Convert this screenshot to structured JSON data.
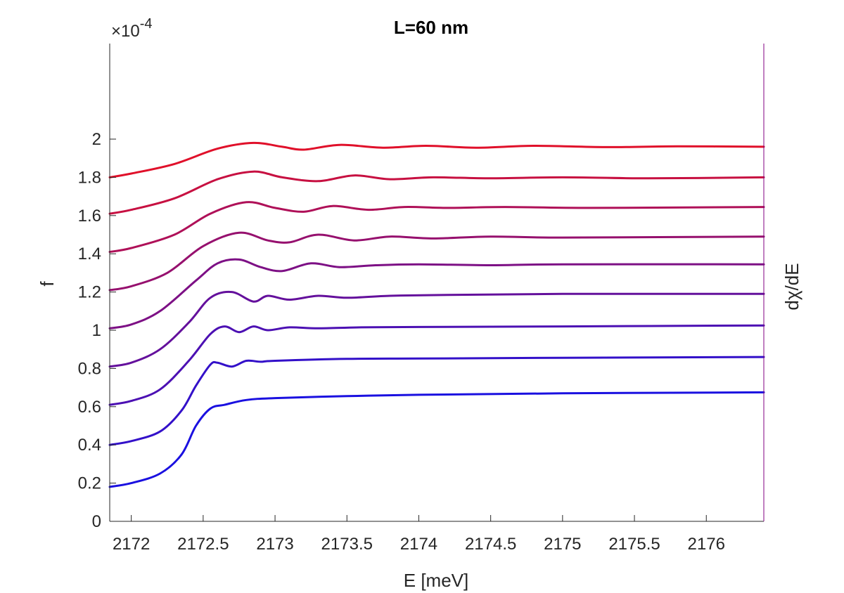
{
  "chart_data": {
    "type": "line",
    "title": "L=60 nm",
    "xlabel": "E [meV]",
    "ylabel": "f",
    "y2label": "dχ/dE",
    "y_exponent_label": "×10",
    "y_exponent_power": "-4",
    "xlim": [
      2171.85,
      2176.4
    ],
    "ylim": [
      0,
      2.5
    ],
    "grid": false,
    "x_ticks": [
      2172,
      2172.5,
      2173,
      2173.5,
      2174,
      2174.5,
      2175,
      2175.5,
      2176
    ],
    "x_tick_labels": [
      "2172",
      "2172.5",
      "2173",
      "2173.5",
      "2174",
      "2174.5",
      "2175",
      "2175.5",
      "2176"
    ],
    "y_ticks": [
      0,
      0.2,
      0.4,
      0.6,
      0.8,
      1,
      1.2,
      1.4,
      1.6,
      1.8,
      2
    ],
    "y_tick_labels": [
      "0",
      "0.2",
      "0.4",
      "0.6",
      "0.8",
      "1",
      "1.2",
      "1.4",
      "1.6",
      "1.8",
      "2"
    ],
    "colors": {
      "low": "#1a10e0",
      "high": "#e0102a",
      "right_axis": "#800080",
      "axis": "#262626"
    },
    "series": [
      {
        "values_desc": "curve 1",
        "x": [
          2171.85,
          2172.0,
          2172.2,
          2172.35,
          2172.45,
          2172.55,
          2172.65,
          2172.8,
          2173.0,
          2173.5,
          2174.0,
          2175.0,
          2176.4
        ],
        "y": [
          0.18,
          0.2,
          0.25,
          0.35,
          0.5,
          0.59,
          0.61,
          0.635,
          0.645,
          0.655,
          0.662,
          0.67,
          0.675
        ]
      },
      {
        "values_desc": "curve 2",
        "x": [
          2171.85,
          2172.0,
          2172.2,
          2172.35,
          2172.45,
          2172.55,
          2172.6,
          2172.7,
          2172.8,
          2172.9,
          2173.0,
          2173.5,
          2174.0,
          2175.0,
          2176.4
        ],
        "y": [
          0.4,
          0.42,
          0.47,
          0.58,
          0.71,
          0.82,
          0.83,
          0.81,
          0.84,
          0.835,
          0.84,
          0.85,
          0.852,
          0.856,
          0.86
        ]
      },
      {
        "values_desc": "curve 3",
        "x": [
          2171.85,
          2172.0,
          2172.2,
          2172.4,
          2172.55,
          2172.65,
          2172.75,
          2172.85,
          2172.95,
          2173.1,
          2173.3,
          2173.6,
          2174.0,
          2175.0,
          2176.4
        ],
        "y": [
          0.61,
          0.63,
          0.69,
          0.84,
          0.98,
          1.02,
          0.99,
          1.02,
          1.0,
          1.015,
          1.01,
          1.015,
          1.017,
          1.02,
          1.025
        ]
      },
      {
        "values_desc": "curve 4",
        "x": [
          2171.85,
          2172.0,
          2172.2,
          2172.4,
          2172.55,
          2172.7,
          2172.85,
          2172.95,
          2173.1,
          2173.3,
          2173.5,
          2173.8,
          2174.2,
          2175.0,
          2176.4
        ],
        "y": [
          0.81,
          0.83,
          0.9,
          1.04,
          1.17,
          1.2,
          1.15,
          1.18,
          1.16,
          1.18,
          1.17,
          1.18,
          1.185,
          1.19,
          1.19
        ]
      },
      {
        "values_desc": "curve 5",
        "x": [
          2171.85,
          2172.0,
          2172.2,
          2172.45,
          2172.6,
          2172.75,
          2172.9,
          2173.05,
          2173.25,
          2173.45,
          2173.7,
          2174.0,
          2174.5,
          2175.0,
          2176.4
        ],
        "y": [
          1.01,
          1.03,
          1.1,
          1.26,
          1.35,
          1.37,
          1.33,
          1.31,
          1.35,
          1.33,
          1.34,
          1.345,
          1.34,
          1.345,
          1.345
        ]
      },
      {
        "values_desc": "curve 6",
        "x": [
          2171.85,
          2172.0,
          2172.25,
          2172.5,
          2172.75,
          2172.95,
          2173.1,
          2173.3,
          2173.55,
          2173.8,
          2174.1,
          2174.5,
          2175.0,
          2176.4
        ],
        "y": [
          1.21,
          1.23,
          1.3,
          1.44,
          1.51,
          1.47,
          1.46,
          1.5,
          1.47,
          1.49,
          1.48,
          1.49,
          1.485,
          1.49
        ]
      },
      {
        "values_desc": "curve 7",
        "x": [
          2171.85,
          2172.0,
          2172.3,
          2172.55,
          2172.8,
          2173.0,
          2173.2,
          2173.4,
          2173.65,
          2173.9,
          2174.2,
          2174.6,
          2175.2,
          2176.4
        ],
        "y": [
          1.41,
          1.43,
          1.5,
          1.61,
          1.67,
          1.64,
          1.62,
          1.65,
          1.63,
          1.645,
          1.64,
          1.645,
          1.64,
          1.645
        ]
      },
      {
        "values_desc": "curve 8",
        "x": [
          2171.85,
          2172.0,
          2172.3,
          2172.6,
          2172.85,
          2173.05,
          2173.3,
          2173.55,
          2173.8,
          2174.1,
          2174.5,
          2175.0,
          2175.6,
          2176.4
        ],
        "y": [
          1.61,
          1.63,
          1.69,
          1.79,
          1.83,
          1.8,
          1.78,
          1.81,
          1.79,
          1.8,
          1.795,
          1.8,
          1.795,
          1.8
        ]
      },
      {
        "values_desc": "curve 9",
        "x": [
          2171.85,
          2172.0,
          2172.3,
          2172.6,
          2172.85,
          2173.05,
          2173.2,
          2173.45,
          2173.75,
          2174.05,
          2174.4,
          2174.8,
          2175.3,
          2175.8,
          2176.4
        ],
        "y": [
          1.8,
          1.82,
          1.87,
          1.95,
          1.98,
          1.96,
          1.945,
          1.97,
          1.955,
          1.965,
          1.955,
          1.965,
          1.958,
          1.962,
          1.96
        ]
      }
    ]
  }
}
